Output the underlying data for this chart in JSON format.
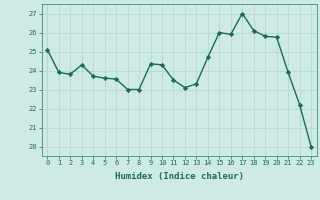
{
  "x": [
    0,
    1,
    2,
    3,
    4,
    5,
    6,
    7,
    8,
    9,
    10,
    11,
    12,
    13,
    14,
    15,
    16,
    17,
    18,
    19,
    20,
    21,
    22,
    23
  ],
  "y": [
    25.1,
    23.9,
    23.8,
    24.3,
    23.7,
    23.6,
    23.55,
    23.0,
    23.0,
    24.35,
    24.3,
    23.5,
    23.1,
    23.3,
    24.7,
    26.0,
    25.9,
    27.0,
    26.1,
    25.8,
    25.75,
    23.9,
    22.2,
    20.0
  ],
  "line_color": "#1a6b5a",
  "marker": "D",
  "markersize": 2.2,
  "linewidth": 1.0,
  "xlabel": "Humidex (Indice chaleur)",
  "xlim": [
    -0.5,
    23.5
  ],
  "ylim": [
    19.5,
    27.5
  ],
  "yticks": [
    20,
    21,
    22,
    23,
    24,
    25,
    26,
    27
  ],
  "xticks": [
    0,
    1,
    2,
    3,
    4,
    5,
    6,
    7,
    8,
    9,
    10,
    11,
    12,
    13,
    14,
    15,
    16,
    17,
    18,
    19,
    20,
    21,
    22,
    23
  ],
  "background_color": "#ceeae5",
  "grid_color": "#b8d8d2",
  "spine_color": "#5a9a8a",
  "tick_label_color": "#1a6b5a",
  "xlabel_color": "#1a6b5a",
  "tick_fontsize": 5.0,
  "xlabel_fontsize": 6.5
}
